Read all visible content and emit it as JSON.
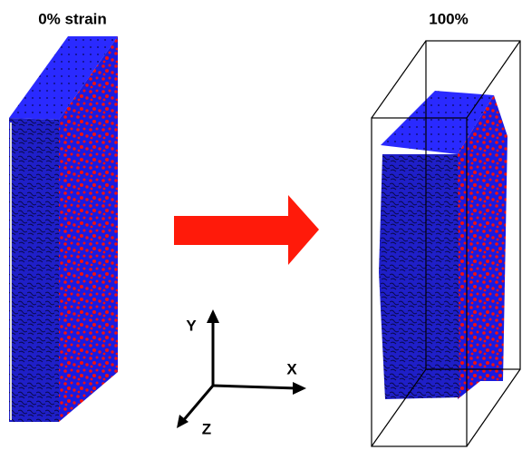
{
  "panels": {
    "left_title": "0% strain",
    "right_title": "100%"
  },
  "axes": {
    "y": "Y",
    "x": "X",
    "z": "Z"
  }
}
